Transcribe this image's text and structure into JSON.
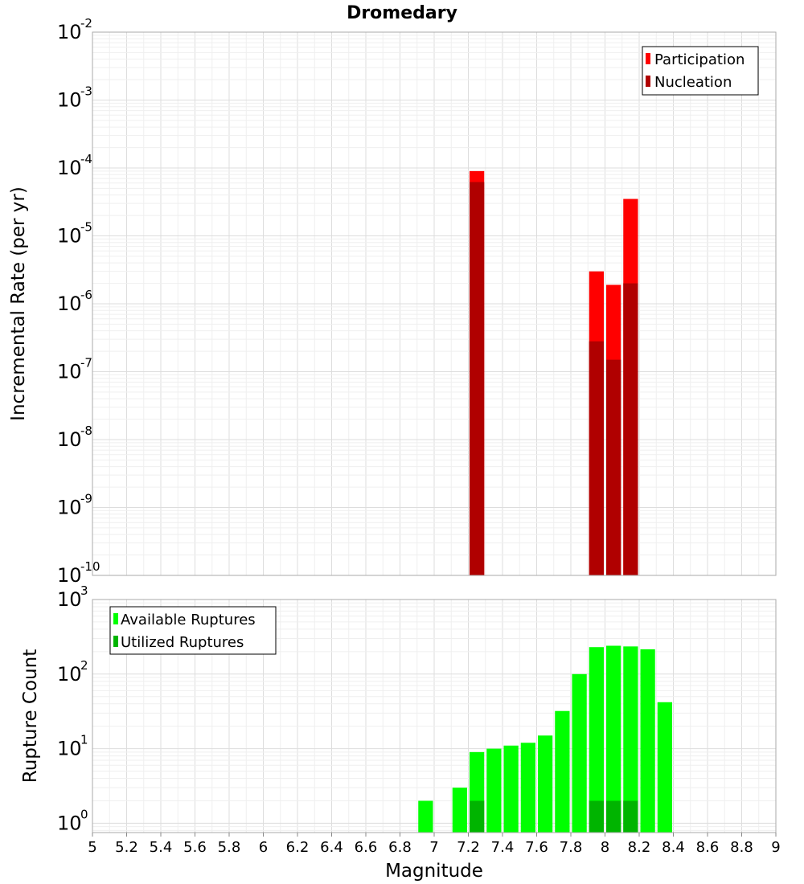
{
  "chart_data": [
    {
      "type": "bar",
      "id": "rate",
      "title": "Dromedary",
      "xlabel": "Magnitude",
      "ylabel": "Incremental Rate (per yr)",
      "xlim": [
        5,
        9
      ],
      "ylim": [
        1e-10,
        0.01
      ],
      "yscale": "log",
      "yticks": [
        {
          "base": "10",
          "exp": "-2",
          "value": 0.01
        },
        {
          "base": "10",
          "exp": "-3",
          "value": 0.001
        },
        {
          "base": "10",
          "exp": "-4",
          "value": 0.0001
        },
        {
          "base": "10",
          "exp": "-5",
          "value": 1e-05
        },
        {
          "base": "10",
          "exp": "-6",
          "value": 1e-06
        },
        {
          "base": "10",
          "exp": "-7",
          "value": 1e-07
        },
        {
          "base": "10",
          "exp": "-8",
          "value": 1e-08
        },
        {
          "base": "10",
          "exp": "-9",
          "value": 1e-09
        },
        {
          "base": "10",
          "exp": "-10",
          "value": 1e-10
        }
      ],
      "legend_position": "top-right",
      "series": [
        {
          "name": "Participation",
          "color": "#ff0000",
          "x": [
            7.25,
            7.95,
            8.05,
            8.15
          ],
          "values": [
            9e-05,
            3e-06,
            1.9e-06,
            3.5e-05
          ]
        },
        {
          "name": "Nucleation",
          "color": "#b00000",
          "x": [
            7.25,
            7.95,
            8.05,
            8.15
          ],
          "values": [
            6.2e-05,
            2.8e-07,
            1.5e-07,
            2e-06
          ]
        }
      ]
    },
    {
      "type": "bar",
      "id": "count",
      "xlabel": "Magnitude",
      "ylabel": "Rupture Count",
      "xlim": [
        5,
        9
      ],
      "ylim": [
        0.75,
        1000
      ],
      "yscale": "log",
      "yticks": [
        {
          "base": "10",
          "exp": "3",
          "value": 1000
        },
        {
          "base": "10",
          "exp": "2",
          "value": 100
        },
        {
          "base": "10",
          "exp": "1",
          "value": 10
        },
        {
          "base": "10",
          "exp": "0",
          "value": 1
        }
      ],
      "xticks": [
        "5",
        "5.2",
        "5.4",
        "5.6",
        "5.8",
        "6",
        "6.2",
        "6.4",
        "6.6",
        "6.8",
        "7",
        "7.2",
        "7.4",
        "7.6",
        "7.8",
        "8",
        "8.2",
        "8.4",
        "8.6",
        "8.8",
        "9"
      ],
      "legend_position": "top-left",
      "series": [
        {
          "name": "Available Ruptures",
          "color": "#00ff00",
          "x": [
            6.95,
            7.15,
            7.25,
            7.35,
            7.45,
            7.55,
            7.65,
            7.75,
            7.85,
            7.95,
            8.05,
            8.15,
            8.25,
            8.35
          ],
          "values": [
            2,
            3,
            9,
            10,
            11,
            12,
            15,
            32,
            100,
            230,
            240,
            235,
            215,
            42
          ]
        },
        {
          "name": "Utilized Ruptures",
          "color": "#00b400",
          "x": [
            7.25,
            7.95,
            8.05,
            8.15
          ],
          "values": [
            2,
            2,
            2,
            2
          ]
        }
      ]
    }
  ]
}
